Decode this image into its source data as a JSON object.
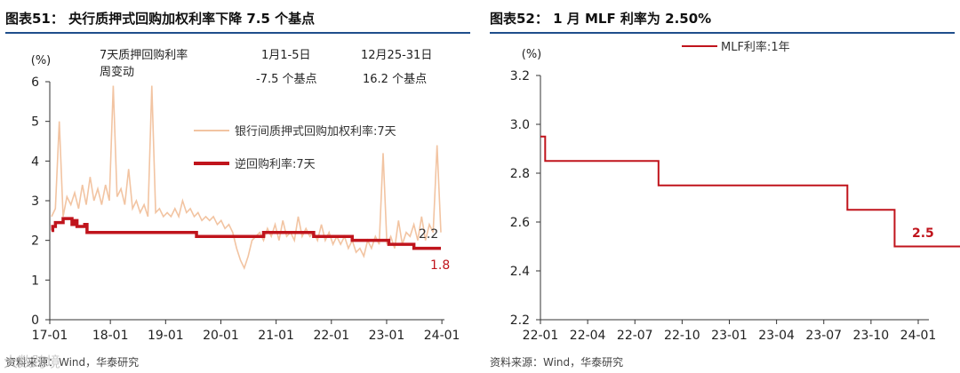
{
  "left": {
    "title": "图表51：  央行质押式回购加权利率下降 7.5 个基点",
    "source": "资料来源：Wind，华泰研究",
    "watermark": "大数跨境",
    "chart_data": {
      "type": "line",
      "ylabel": "(%)",
      "ylim": [
        0,
        6
      ],
      "yticks": [
        0,
        1,
        2,
        3,
        4,
        5,
        6
      ],
      "xticks": [
        "17-01",
        "18-01",
        "19-01",
        "20-01",
        "21-01",
        "22-01",
        "23-01",
        "24-01"
      ],
      "legend": "right-center",
      "series": [
        {
          "name": "银行间质押式回购加权利率:7天",
          "color": "#f2c4a2",
          "values": [
            2.6,
            2.8,
            5.0,
            2.6,
            3.1,
            2.9,
            3.2,
            2.8,
            3.4,
            2.9,
            3.6,
            3.0,
            3.3,
            2.9,
            3.4,
            3.0,
            5.9,
            3.1,
            3.3,
            2.9,
            3.8,
            2.8,
            3.0,
            2.7,
            2.9,
            2.6,
            5.9,
            2.7,
            2.8,
            2.6,
            2.7,
            2.6,
            2.8,
            2.6,
            3.0,
            2.7,
            2.8,
            2.6,
            2.7,
            2.5,
            2.6,
            2.5,
            2.6,
            2.4,
            2.5,
            2.3,
            2.4,
            2.2,
            1.8,
            1.5,
            1.3,
            1.6,
            2.0,
            2.1,
            2.2,
            2.0,
            2.3,
            2.1,
            2.4,
            2.0,
            2.5,
            2.1,
            2.2,
            2.0,
            2.6,
            2.1,
            2.3,
            2.1,
            2.2,
            2.0,
            2.4,
            2.0,
            2.2,
            1.9,
            2.1,
            1.9,
            2.1,
            1.8,
            2.0,
            1.7,
            1.8,
            1.6,
            2.0,
            1.8,
            2.1,
            1.9,
            4.2,
            1.9,
            2.1,
            1.8,
            2.5,
            1.9,
            2.2,
            2.1,
            2.4,
            2.0,
            2.6,
            2.0,
            2.4,
            2.2,
            4.4,
            2.2
          ]
        },
        {
          "name": "逆回购利率:7天",
          "color": "#c0141c",
          "steps": [
            [
              0,
              2.25
            ],
            [
              0.3,
              2.35
            ],
            [
              1.0,
              2.45
            ],
            [
              3.0,
              2.55
            ],
            [
              5.3,
              2.4
            ],
            [
              6.0,
              2.5
            ],
            [
              6.6,
              2.35
            ],
            [
              8.0,
              2.35
            ],
            [
              8.6,
              2.4
            ],
            [
              9.2,
              2.2
            ],
            [
              13.0,
              2.2
            ],
            [
              15.1,
              2.2
            ],
            [
              25.0,
              2.2
            ],
            [
              33.4,
              2.2
            ],
            [
              35.0,
              2.2
            ],
            [
              37.6,
              2.1
            ],
            [
              43.6,
              2.1
            ],
            [
              49.8,
              2.1
            ],
            [
              55.0,
              2.2
            ],
            [
              62.0,
              2.2
            ],
            [
              68.0,
              2.1
            ],
            [
              74.5,
              2.1
            ],
            [
              78.0,
              2.0
            ],
            [
              85.0,
              2.0
            ],
            [
              87.5,
              1.9
            ],
            [
              92.0,
              1.9
            ],
            [
              94.0,
              1.8
            ],
            [
              101,
              1.8
            ]
          ]
        }
      ],
      "annotations": {
        "header_label": "7天质押回购利率\n周变动",
        "col1_label": "1月1-5日",
        "col1_value": "-7.5  个基点",
        "col2_label": "12月25-31日",
        "col2_value": "16.2  个基点",
        "end_label_1": "2.2",
        "end_label_2": "1.8"
      }
    }
  },
  "right": {
    "title": "图表52：  1 月 MLF 利率为 2.50%",
    "source": "资料来源：Wind，华泰研究",
    "chart_data": {
      "type": "line",
      "ylabel": "(%)",
      "ylim": [
        2.2,
        3.2
      ],
      "yticks": [
        2.2,
        2.4,
        2.6,
        2.8,
        3.0,
        3.2
      ],
      "xticks": [
        "22-01",
        "22-04",
        "22-07",
        "22-10",
        "23-01",
        "23-04",
        "23-07",
        "23-10",
        "24-01"
      ],
      "legend": "top-left",
      "series": [
        {
          "name": "MLF利率:1年",
          "color": "#c0141c",
          "steps": [
            [
              0,
              2.95
            ],
            [
              0.3,
              2.85
            ],
            [
              7.5,
              2.75
            ],
            [
              19.5,
              2.65
            ],
            [
              22.5,
              2.5
            ],
            [
              28,
              2.5
            ]
          ]
        }
      ],
      "annotations": {
        "end_label": "2.5"
      }
    }
  }
}
